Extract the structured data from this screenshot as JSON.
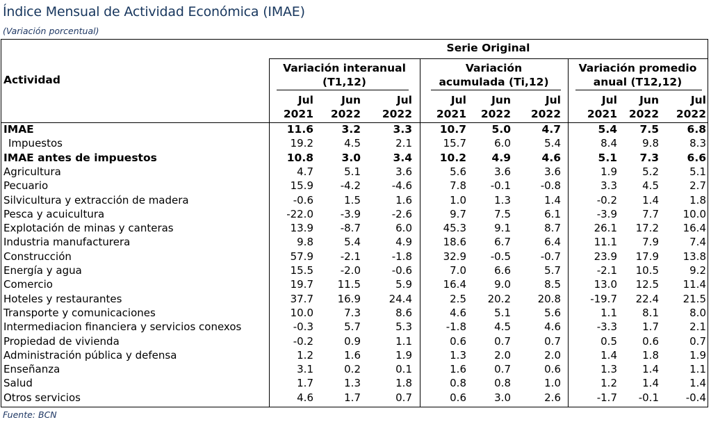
{
  "title": "Índice Mensual de Actividad Económica (IMAE)",
  "subtitle": "(Variación porcentual)",
  "source": "Fuente: BCN",
  "header": {
    "row_label": "Actividad",
    "super_group": "Serie Original",
    "groups": [
      {
        "line1": "Variación interanual",
        "line2": "(T1,12)"
      },
      {
        "line1": "Variación",
        "line2": "acumulada (Ti,12)"
      },
      {
        "line1": "Variación promedio",
        "line2": "anual (T12,12)"
      }
    ],
    "periods": [
      {
        "month": "Jul",
        "year": "2021"
      },
      {
        "month": "Jun",
        "year": "2022"
      },
      {
        "month": "Jul",
        "year": "2022"
      }
    ]
  },
  "chart_data": {
    "type": "table",
    "title": "Índice Mensual de Actividad Económica (IMAE)",
    "columns": [
      "Variación interanual (T1,12) Jul 2021",
      "Variación interanual (T1,12) Jun 2022",
      "Variación interanual (T1,12) Jul 2022",
      "Variación acumulada (Ti,12) Jul 2021",
      "Variación acumulada (Ti,12) Jun 2022",
      "Variación acumulada (Ti,12) Jul 2022",
      "Variación promedio anual (T12,12) Jul 2021",
      "Variación promedio anual (T12,12) Jun 2022",
      "Variación promedio anual (T12,12) Jul 2022"
    ],
    "rows": [
      {
        "label": "IMAE",
        "bold": true,
        "values": [
          "11.6",
          "3.2",
          "3.3",
          "10.7",
          "5.0",
          "4.7",
          "5.4",
          "7.5",
          "6.8"
        ]
      },
      {
        "label": "Impuestos",
        "indent": true,
        "values": [
          "19.2",
          "4.5",
          "2.1",
          "15.7",
          "6.0",
          "5.4",
          "8.4",
          "9.8",
          "8.3"
        ]
      },
      {
        "label": "IMAE antes de impuestos",
        "bold": true,
        "values": [
          "10.8",
          "3.0",
          "3.4",
          "10.2",
          "4.9",
          "4.6",
          "5.1",
          "7.3",
          "6.6"
        ]
      },
      {
        "label": "Agricultura",
        "values": [
          "4.7",
          "5.1",
          "3.6",
          "5.6",
          "3.6",
          "3.6",
          "1.9",
          "5.2",
          "5.1"
        ]
      },
      {
        "label": "Pecuario",
        "values": [
          "15.9",
          "-4.2",
          "-4.6",
          "7.8",
          "-0.1",
          "-0.8",
          "3.3",
          "4.5",
          "2.7"
        ]
      },
      {
        "label": "Silvicultura y extracción de madera",
        "values": [
          "-0.6",
          "1.5",
          "1.6",
          "1.0",
          "1.3",
          "1.4",
          "-0.2",
          "1.4",
          "1.8"
        ]
      },
      {
        "label": "Pesca y acuicultura",
        "values": [
          "-22.0",
          "-3.9",
          "-2.6",
          "9.7",
          "7.5",
          "6.1",
          "-3.9",
          "7.7",
          "10.0"
        ]
      },
      {
        "label": "Explotación de minas y canteras",
        "values": [
          "13.9",
          "-8.7",
          "6.0",
          "45.3",
          "9.1",
          "8.7",
          "26.1",
          "17.2",
          "16.4"
        ]
      },
      {
        "label": "Industria manufacturera",
        "values": [
          "9.8",
          "5.4",
          "4.9",
          "18.6",
          "6.7",
          "6.4",
          "11.1",
          "7.9",
          "7.4"
        ]
      },
      {
        "label": "Construcción",
        "values": [
          "57.9",
          "-2.1",
          "-1.8",
          "32.9",
          "-0.5",
          "-0.7",
          "23.9",
          "17.9",
          "13.8"
        ]
      },
      {
        "label": "Energía y agua",
        "values": [
          "15.5",
          "-2.0",
          "-0.6",
          "7.0",
          "6.6",
          "5.7",
          "-2.1",
          "10.5",
          "9.2"
        ]
      },
      {
        "label": "Comercio",
        "values": [
          "19.7",
          "11.5",
          "5.9",
          "16.4",
          "9.0",
          "8.5",
          "13.0",
          "12.5",
          "11.4"
        ]
      },
      {
        "label": "Hoteles y restaurantes",
        "values": [
          "37.7",
          "16.9",
          "24.4",
          "2.5",
          "20.2",
          "20.8",
          "-19.7",
          "22.4",
          "21.5"
        ]
      },
      {
        "label": "Transporte y comunicaciones",
        "values": [
          "10.0",
          "7.3",
          "8.6",
          "4.6",
          "5.1",
          "5.6",
          "1.1",
          "8.1",
          "8.0"
        ]
      },
      {
        "label": "Intermediacion financiera y servicios conexos",
        "values": [
          "-0.3",
          "5.7",
          "5.3",
          "-1.8",
          "4.5",
          "4.6",
          "-3.3",
          "1.7",
          "2.1"
        ]
      },
      {
        "label": "Propiedad de vivienda",
        "values": [
          "-0.2",
          "0.9",
          "1.1",
          "0.6",
          "0.7",
          "0.7",
          "0.5",
          "0.6",
          "0.7"
        ]
      },
      {
        "label": "Administración pública y defensa",
        "values": [
          "1.2",
          "1.6",
          "1.9",
          "1.3",
          "2.0",
          "2.0",
          "1.4",
          "1.8",
          "1.9"
        ]
      },
      {
        "label": "Enseñanza",
        "values": [
          "3.1",
          "0.2",
          "0.1",
          "1.6",
          "0.7",
          "0.6",
          "1.3",
          "1.4",
          "1.1"
        ]
      },
      {
        "label": "Salud",
        "values": [
          "1.7",
          "1.3",
          "1.8",
          "0.8",
          "0.8",
          "1.0",
          "1.2",
          "1.4",
          "1.4"
        ]
      },
      {
        "label": "Otros servicios",
        "values": [
          "4.6",
          "1.7",
          "0.7",
          "0.6",
          "3.0",
          "2.6",
          "-1.7",
          "-0.1",
          "-0.4"
        ]
      }
    ]
  }
}
